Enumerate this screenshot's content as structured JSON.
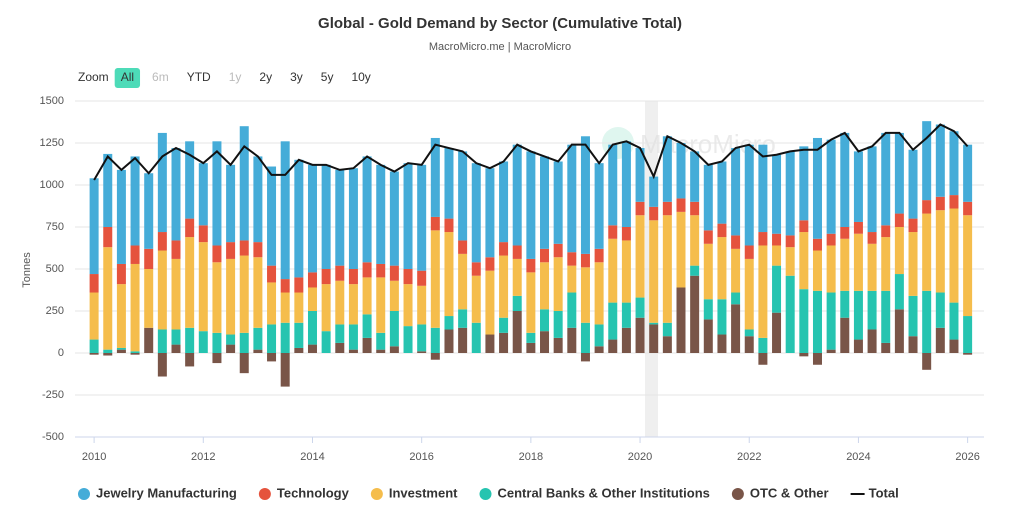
{
  "chart_data": {
    "type": "stacked_bar_line",
    "title": "Global - Gold Demand by Sector (Cumulative Total)",
    "subtitle": "MacroMicro.me | MacroMicro",
    "watermark": "MacroMicro",
    "zoom": {
      "label": "Zoom",
      "buttons": [
        "All",
        "6m",
        "YTD",
        "1y",
        "2y",
        "3y",
        "5y",
        "10y"
      ],
      "active": 0
    },
    "y_label": "Tonnes",
    "xlim": [
      2009.65,
      2026.3
    ],
    "xticks": [
      2010,
      2012,
      2014,
      2016,
      2018,
      2020,
      2022,
      2024,
      2026
    ],
    "ylim": [
      -500,
      1500
    ],
    "yticks": [
      -500,
      -250,
      0,
      250,
      500,
      750,
      1000,
      1250,
      1500
    ],
    "grid": true,
    "legend": "bottom",
    "x": [
      2010,
      2010.25,
      2010.5,
      2010.75,
      2011,
      2011.25,
      2011.5,
      2011.75,
      2012,
      2012.25,
      2012.5,
      2012.75,
      2013,
      2013.25,
      2013.5,
      2013.75,
      2014,
      2014.25,
      2014.5,
      2014.75,
      2015,
      2015.25,
      2015.5,
      2015.75,
      2016,
      2016.25,
      2016.5,
      2016.75,
      2017,
      2017.25,
      2017.5,
      2017.75,
      2018,
      2018.25,
      2018.5,
      2018.75,
      2019,
      2019.25,
      2019.5,
      2019.75,
      2020,
      2020.25,
      2020.5,
      2020.75,
      2021,
      2021.25,
      2021.5,
      2021.75,
      2022,
      2022.25,
      2022.5,
      2022.75,
      2023,
      2023.25,
      2023.5,
      2023.75,
      2024,
      2024.25,
      2024.5,
      2024.75,
      2025,
      2025.25,
      2025.5,
      2025.75,
      2026
    ],
    "series": [
      {
        "name": "OTC & Other",
        "color": "#795548",
        "kind": "bar",
        "values": [
          -10,
          -15,
          20,
          -10,
          150,
          -140,
          50,
          -80,
          0,
          -60,
          50,
          -120,
          20,
          -50,
          -200,
          30,
          50,
          0,
          60,
          20,
          90,
          20,
          40,
          0,
          10,
          -40,
          140,
          150,
          0,
          110,
          120,
          250,
          60,
          130,
          90,
          150,
          -50,
          40,
          80,
          150,
          210,
          170,
          100,
          390,
          460,
          200,
          110,
          290,
          100,
          -70,
          240,
          0,
          -20,
          -70,
          20,
          210,
          80,
          140,
          60,
          260,
          100,
          -100,
          150,
          80,
          -10
        ]
      },
      {
        "name": "Central Banks & Other Institutions",
        "color": "#26c4b0",
        "kind": "bar",
        "values": [
          80,
          20,
          10,
          10,
          0,
          140,
          90,
          150,
          130,
          120,
          60,
          120,
          130,
          170,
          180,
          150,
          200,
          130,
          110,
          150,
          140,
          100,
          210,
          160,
          160,
          150,
          80,
          110,
          180,
          0,
          90,
          90,
          60,
          130,
          160,
          210,
          180,
          130,
          220,
          150,
          120,
          10,
          80,
          0,
          60,
          120,
          210,
          70,
          40,
          90,
          280,
          460,
          380,
          370,
          340,
          160,
          290,
          230,
          310,
          210,
          240,
          370,
          210,
          220,
          220
        ]
      },
      {
        "name": "Investment",
        "color": "#f5bd4c",
        "kind": "bar",
        "values": [
          280,
          610,
          380,
          520,
          350,
          470,
          420,
          540,
          530,
          420,
          450,
          460,
          420,
          250,
          180,
          180,
          140,
          280,
          260,
          240,
          220,
          330,
          180,
          250,
          230,
          580,
          500,
          330,
          280,
          380,
          370,
          220,
          360,
          280,
          320,
          160,
          330,
          370,
          380,
          370,
          490,
          610,
          640,
          450,
          300,
          330,
          370,
          260,
          420,
          550,
          120,
          170,
          340,
          240,
          280,
          310,
          340,
          280,
          320,
          280,
          380,
          460,
          490,
          560,
          600
        ]
      },
      {
        "name": "Technology",
        "color": "#e5533d",
        "kind": "bar",
        "values": [
          110,
          120,
          120,
          110,
          120,
          110,
          110,
          110,
          100,
          100,
          100,
          90,
          90,
          100,
          80,
          90,
          90,
          90,
          90,
          90,
          90,
          80,
          90,
          90,
          90,
          80,
          80,
          80,
          80,
          80,
          80,
          80,
          80,
          80,
          80,
          80,
          80,
          80,
          80,
          80,
          80,
          80,
          80,
          80,
          80,
          80,
          80,
          80,
          80,
          80,
          70,
          70,
          70,
          70,
          70,
          70,
          70,
          70,
          70,
          80,
          80,
          80,
          80,
          80,
          80
        ]
      },
      {
        "name": "Jewelry Manufacturing",
        "color": "#45acd8",
        "kind": "bar",
        "values": [
          570,
          435,
          560,
          530,
          450,
          590,
          550,
          460,
          370,
          620,
          460,
          680,
          510,
          590,
          820,
          700,
          640,
          620,
          570,
          600,
          630,
          590,
          560,
          630,
          630,
          470,
          420,
          530,
          590,
          530,
          480,
          600,
          640,
          550,
          490,
          640,
          700,
          510,
          480,
          510,
          320,
          180,
          390,
          330,
          300,
          390,
          370,
          520,
          600,
          520,
          470,
          500,
          440,
          600,
          560,
          560,
          420,
          510,
          550,
          480,
          410,
          470,
          430,
          380,
          340
        ]
      },
      {
        "name": "Total",
        "color": "#111111",
        "kind": "line",
        "values": [
          1030,
          1170,
          1090,
          1160,
          1070,
          1170,
          1220,
          1180,
          1130,
          1200,
          1120,
          1230,
          1170,
          1060,
          1060,
          1150,
          1120,
          1120,
          1090,
          1100,
          1170,
          1120,
          1080,
          1130,
          1120,
          1240,
          1220,
          1200,
          1130,
          1100,
          1140,
          1240,
          1200,
          1170,
          1140,
          1240,
          1240,
          1130,
          1240,
          1260,
          1220,
          1050,
          1290,
          1250,
          1200,
          1120,
          1140,
          1220,
          1240,
          1170,
          1180,
          1200,
          1210,
          1210,
          1270,
          1310,
          1200,
          1230,
          1310,
          1310,
          1210,
          1280,
          1360,
          1320,
          1230
        ]
      }
    ]
  }
}
